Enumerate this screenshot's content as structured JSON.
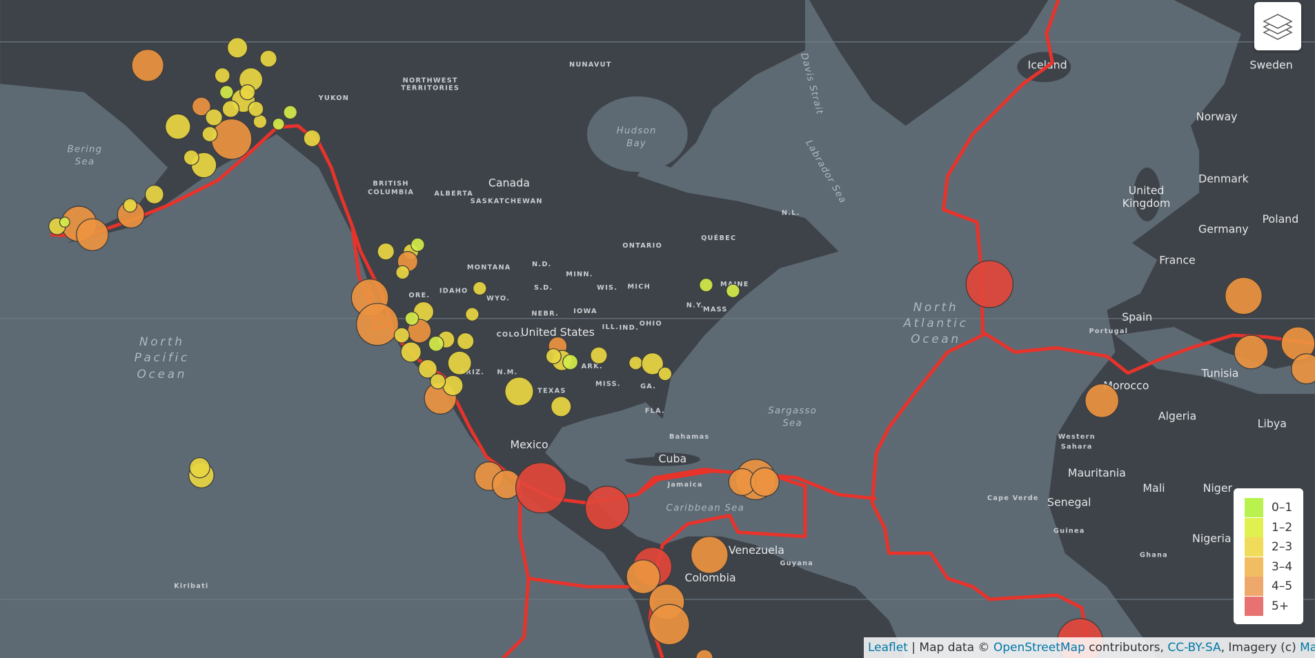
{
  "map": {
    "labels": [
      "NUNAVUT",
      "NORTHWEST",
      "TERRITORIES",
      "YUKON",
      "Hudson",
      "Bay",
      "Canada",
      "BRITISH",
      "COLUMBIA",
      "ALBERTA",
      "SASKATCHEWAN",
      "ONTARIO",
      "QUÉBEC",
      "N.L.",
      "Bering",
      "Sea",
      "North",
      "Pacific",
      "Ocean",
      "MONTANA",
      "N.D.",
      "MINN.",
      "IDAHO",
      "WYO.",
      "S.D.",
      "WIS.",
      "MICH",
      "ORE.",
      "NEBR.",
      "IOWA",
      "United States",
      "COLO.",
      "ILL.",
      "IND.",
      "OHIO",
      "N.Y.",
      "MAINE",
      "MASS",
      "ARIZ.",
      "N.M.",
      "TEXAS",
      "ARK.",
      "MISS.",
      "GA.",
      "FLA.",
      "Mexico",
      "Cuba",
      "Bahamas",
      "Jamaica",
      "Caribbean Sea",
      "Venezuela",
      "Colombia",
      "Guyana",
      "North",
      "Atlantic",
      "Ocean",
      "Sargasso",
      "Sea",
      "Iceland",
      "Sweden",
      "Norway",
      "Denmark",
      "United",
      "Kingdom",
      "Germany",
      "Poland",
      "France",
      "Spain",
      "Portugal",
      "Tunisia",
      "Morocco",
      "Algeria",
      "Libya",
      "Western",
      "Sahara",
      "Mauritania",
      "Mali",
      "Niger",
      "Senegal",
      "Cape Verde",
      "Nigeria",
      "Guinea",
      "Ghana",
      "Kiribati",
      "Davis Strait",
      "Labrador Sea"
    ]
  },
  "legend": {
    "items": [
      {
        "label": "0–1",
        "color": "#b9f24f"
      },
      {
        "label": "1–2",
        "color": "#e0f050"
      },
      {
        "label": "2–3",
        "color": "#f0dc5a"
      },
      {
        "label": "3–4",
        "color": "#f1bd63"
      },
      {
        "label": "4–5",
        "color": "#eea86c"
      },
      {
        "label": "5+",
        "color": "#e87272"
      }
    ]
  },
  "attribution": {
    "parts": [
      {
        "text": "Leaflet",
        "link": true
      },
      {
        "text": " | Map data © ",
        "link": false
      },
      {
        "text": "OpenStreetMap",
        "link": true
      },
      {
        "text": " contributors, ",
        "link": false
      },
      {
        "text": "CC-BY-SA",
        "link": true
      },
      {
        "text": ", Imagery (c) ",
        "link": false
      },
      {
        "text": "Mapbox",
        "link": true
      }
    ]
  }
}
